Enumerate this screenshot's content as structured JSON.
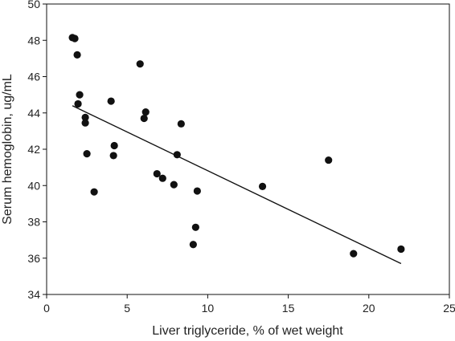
{
  "chart_data": {
    "type": "scatter",
    "title": "",
    "xlabel": "Liver triglyceride, % of wet weight",
    "ylabel": "Serum hemoglobin, ug/mL",
    "xlim": [
      0,
      25
    ],
    "ylim": [
      34,
      50
    ],
    "xticks": [
      0,
      5,
      10,
      15,
      20,
      25
    ],
    "yticks": [
      34,
      36,
      38,
      40,
      42,
      44,
      46,
      48,
      50
    ],
    "grid": false,
    "legend": "none",
    "marker_color": "#111111",
    "series": [
      {
        "points": [
          {
            "x": 1.6,
            "y": 48.15
          },
          {
            "x": 1.75,
            "y": 48.1
          },
          {
            "x": 1.9,
            "y": 47.2
          },
          {
            "x": 2.05,
            "y": 45.0
          },
          {
            "x": 1.95,
            "y": 44.5
          },
          {
            "x": 2.4,
            "y": 43.75
          },
          {
            "x": 2.4,
            "y": 43.45
          },
          {
            "x": 2.5,
            "y": 41.75
          },
          {
            "x": 2.95,
            "y": 39.65
          },
          {
            "x": 4.0,
            "y": 44.65
          },
          {
            "x": 4.2,
            "y": 42.2
          },
          {
            "x": 4.15,
            "y": 41.65
          },
          {
            "x": 5.8,
            "y": 46.7
          },
          {
            "x": 6.15,
            "y": 44.05
          },
          {
            "x": 6.05,
            "y": 43.7
          },
          {
            "x": 6.85,
            "y": 40.65
          },
          {
            "x": 7.2,
            "y": 40.4
          },
          {
            "x": 7.9,
            "y": 40.05
          },
          {
            "x": 8.1,
            "y": 41.7
          },
          {
            "x": 8.35,
            "y": 43.4
          },
          {
            "x": 9.35,
            "y": 39.7
          },
          {
            "x": 9.25,
            "y": 37.7
          },
          {
            "x": 9.1,
            "y": 36.75
          },
          {
            "x": 13.4,
            "y": 39.95
          },
          {
            "x": 17.5,
            "y": 41.4
          },
          {
            "x": 19.05,
            "y": 36.25
          },
          {
            "x": 22.0,
            "y": 36.5
          }
        ]
      }
    ],
    "trendline": {
      "type": "linear",
      "x": [
        1.6,
        22.0
      ],
      "y": [
        44.4,
        35.7
      ]
    }
  }
}
